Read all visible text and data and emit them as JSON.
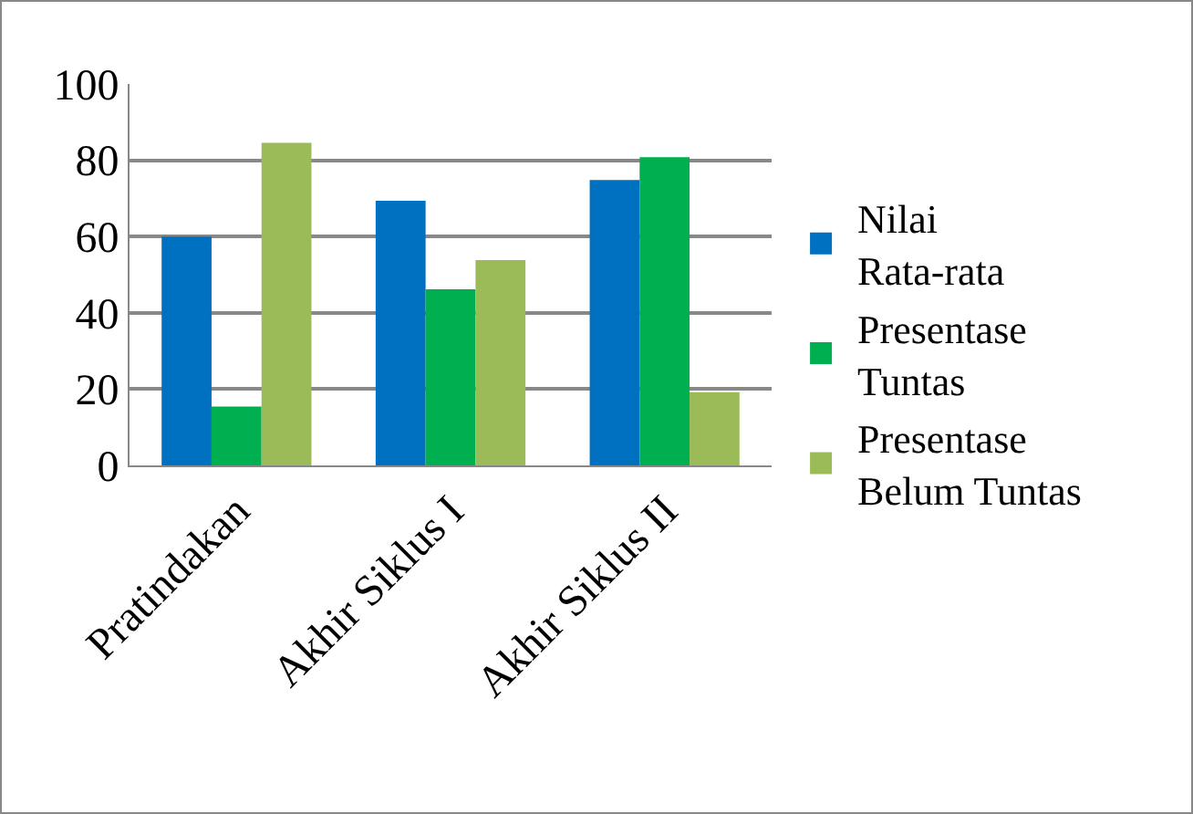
{
  "chart_data": {
    "type": "bar",
    "categories": [
      "Pratindakan",
      "Akhir Siklus I",
      "Akhir Siklus II"
    ],
    "series": [
      {
        "name": "Nilai Rata-rata",
        "color": "#0070c0",
        "values": [
          60,
          69.4,
          74.8
        ]
      },
      {
        "name": "Presentase Tuntas",
        "color": "#00b050",
        "values": [
          15.4,
          46.2,
          80.8
        ]
      },
      {
        "name": "Presentase Belum Tuntas",
        "color": "#9bbb59",
        "values": [
          84.6,
          53.8,
          19.2
        ]
      }
    ],
    "ylim": [
      0,
      100
    ],
    "yticks": [
      0,
      20,
      40,
      60,
      80,
      100
    ],
    "grid": "y",
    "legend": "right"
  }
}
